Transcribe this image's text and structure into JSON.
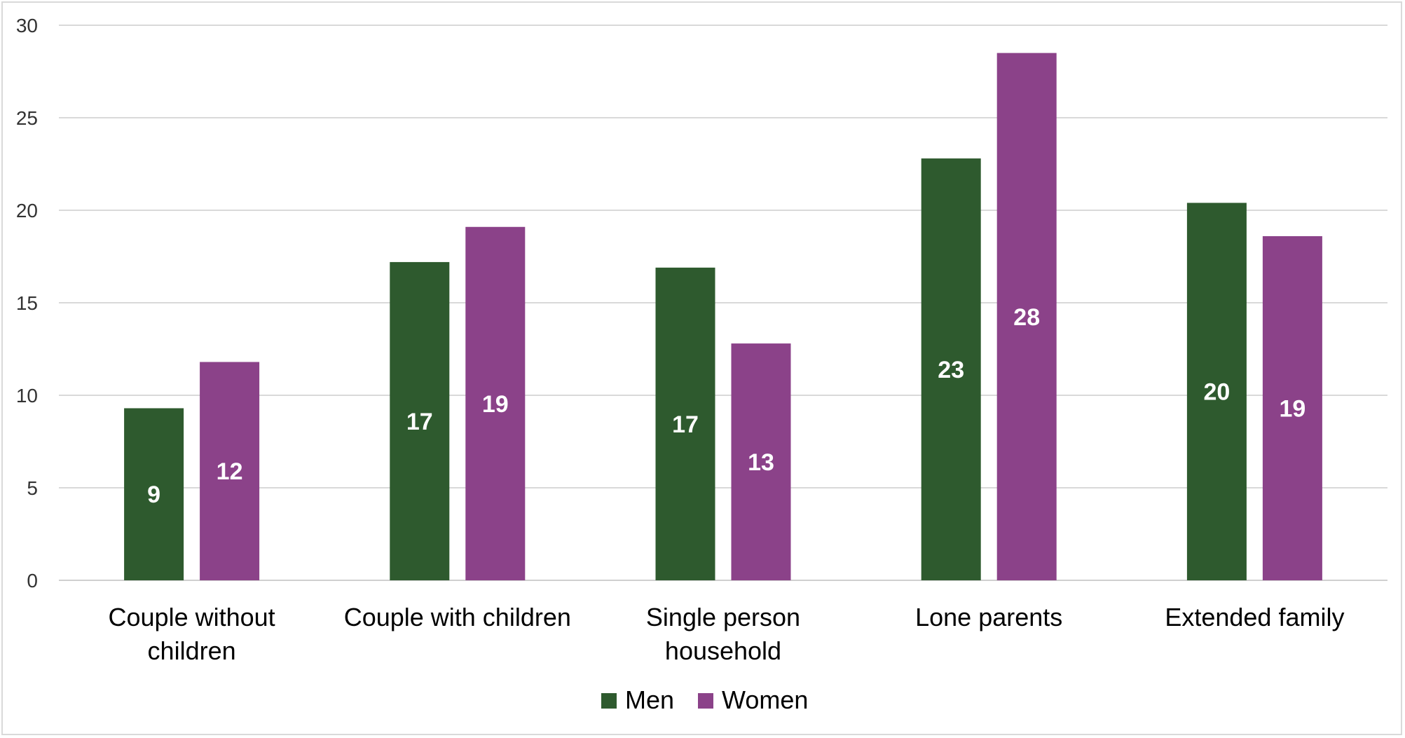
{
  "chart_data": {
    "type": "bar",
    "categories": [
      [
        "Couple without",
        "children"
      ],
      [
        "Couple with children"
      ],
      [
        "Single person",
        "household"
      ],
      [
        "Lone parents"
      ],
      [
        "Extended family"
      ]
    ],
    "series": [
      {
        "name": "Men",
        "color": "#2e5a2e",
        "values": [
          9.3,
          17.2,
          16.9,
          22.8,
          20.4
        ],
        "labels": [
          "9",
          "17",
          "17",
          "23",
          "20"
        ]
      },
      {
        "name": "Women",
        "color": "#8b4289",
        "values": [
          11.8,
          19.1,
          12.8,
          28.5,
          18.6
        ],
        "labels": [
          "12",
          "19",
          "13",
          "28",
          "19"
        ]
      }
    ],
    "ylim": [
      0,
      30
    ],
    "yticks": [
      0,
      5,
      10,
      15,
      20,
      25,
      30
    ],
    "grid": true,
    "legend": "bottom",
    "title": "",
    "xlabel": "",
    "ylabel": ""
  }
}
